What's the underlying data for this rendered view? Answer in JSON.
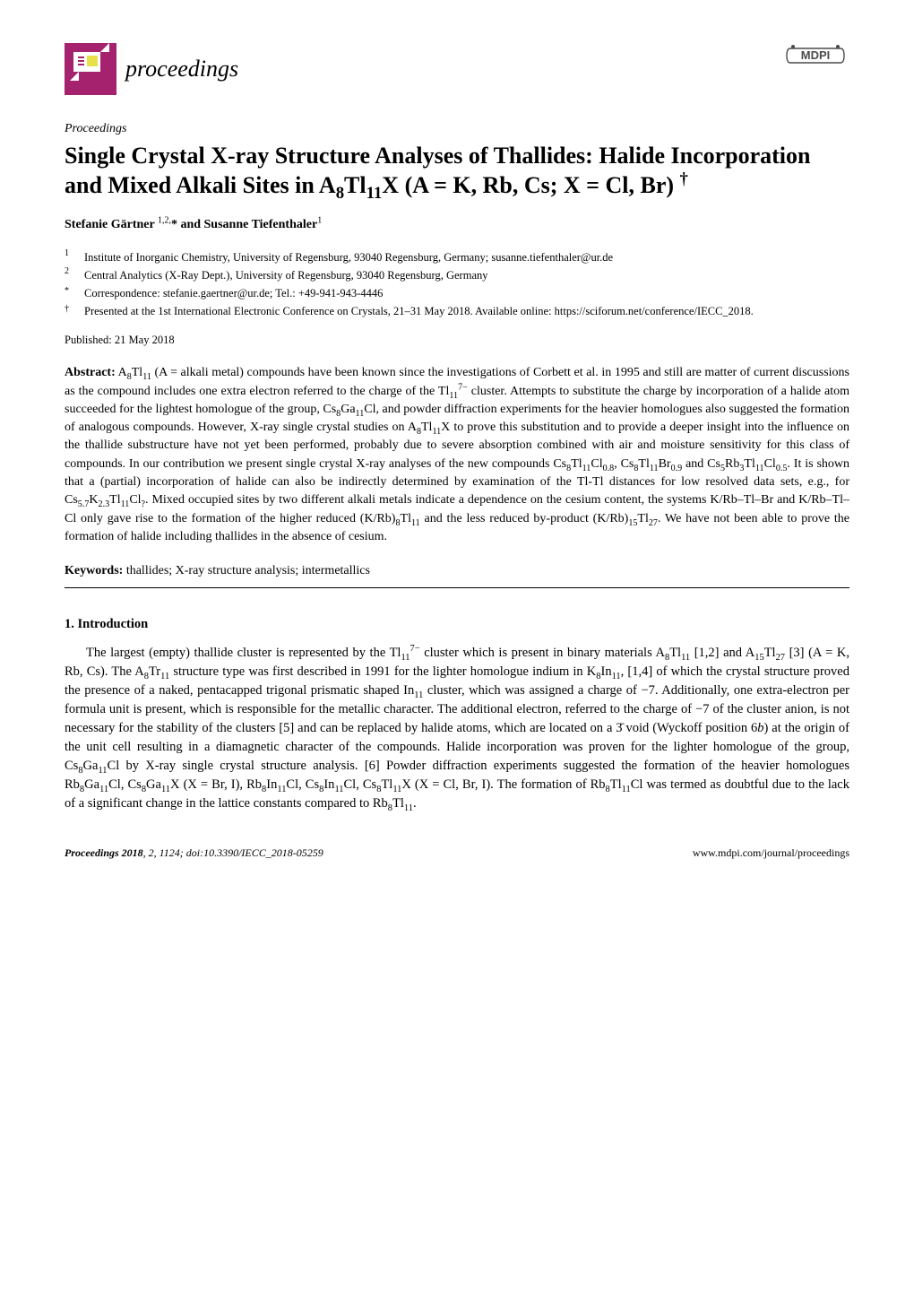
{
  "header": {
    "proceedings_word": "proceedings",
    "logo": {
      "bg_color": "#a5236e",
      "accent_color": "#e8e04a",
      "width": 58,
      "height": 58
    },
    "mdpi": {
      "text": "MDPI",
      "color": "#4b4b4b"
    }
  },
  "article_type": "Proceedings",
  "title_html": "Single Crystal X-ray Structure Analyses of Thallides: Halide Incorporation and Mixed Alkali Sites in A<sub>8</sub>Tl<sub>11</sub>X (A = K, Rb, Cs; X = Cl, Br) <sup>†</sup>",
  "authors_html": "Stefanie Gärtner <sup>1,2,</sup>* and Susanne Tiefenthaler<sup>1</sup>",
  "affiliations": [
    {
      "marker": "1",
      "text": "Institute of Inorganic Chemistry, University of Regensburg, 93040 Regensburg, Germany; susanne.tiefenthaler@ur.de"
    },
    {
      "marker": "2",
      "text": "Central Analytics (X-Ray Dept.), University of Regensburg, 93040 Regensburg, Germany"
    },
    {
      "marker": "*",
      "text": "Correspondence: stefanie.gaertner@ur.de; Tel.: +49-941-943-4446"
    },
    {
      "marker": "†",
      "text": "Presented at the 1st International Electronic Conference on Crystals, 21–31 May 2018. Available online: https://sciforum.net/conference/IECC_2018."
    }
  ],
  "pub_date": "Published: 21 May 2018",
  "abstract": {
    "label": "Abstract:",
    "text_html": "A<sub>8</sub>Tl<sub>11</sub> (A = alkali metal) compounds have been known since the investigations of Corbett et al. in 1995 and still are matter of current discussions as the compound includes one extra electron referred to the charge of the Tl<sub>11</sub><sup>7−</sup> cluster. Attempts to substitute the charge by incorporation of a halide atom succeeded for the lightest homologue of the group, Cs<sub>8</sub>Ga<sub>11</sub>Cl, and powder diffraction experiments for the heavier homologues also suggested the formation of analogous compounds. However, X-ray single crystal studies on A<sub>8</sub>Tl<sub>11</sub>X to prove this substitution and to provide a deeper insight into the influence on the thallide substructure have not yet been performed, probably due to severe absorption combined with air and moisture sensitivity for this class of compounds. In our contribution we present single crystal X-ray analyses of the new compounds Cs<sub>8</sub>Tl<sub>11</sub>Cl<sub>0.8</sub>, Cs<sub>8</sub>Tl<sub>11</sub>Br<sub>0.9</sub> and Cs<sub>5</sub>Rb<sub>3</sub>Tl<sub>11</sub>Cl<sub>0.5</sub>. It is shown that a (partial) incorporation of halide can also be indirectly determined by examination of the Tl-Tl distances for low resolved data sets, e.g., for Cs<sub>5.7</sub>K<sub>2.3</sub>Tl<sub>11</sub>Cl<sub>?</sub>. Mixed occupied sites by two different alkali metals indicate a dependence on the cesium content, the systems K/Rb–Tl–Br and K/Rb–Tl–Cl only gave rise to the formation of the higher reduced (K/Rb)<sub>8</sub>Tl<sub>11</sub> and the less reduced by-product (K/Rb)<sub>15</sub>Tl<sub>27</sub>. We have not been able to prove the formation of halide including thallides in the absence of cesium."
  },
  "keywords": {
    "label": "Keywords:",
    "text": "thallides; X-ray structure analysis; intermetallics"
  },
  "section1": {
    "heading": "1. Introduction",
    "para_html": "The largest (empty) thallide cluster is represented by the Tl<sub>11</sub><sup>7−</sup> cluster which is present in binary materials A<sub>8</sub>Tl<sub>11</sub> [1,2] and A<sub>15</sub>Tl<sub>27</sub> [3] (A = K, Rb, Cs). The A<sub>8</sub>Tr<sub>11</sub> structure type was first described in 1991 for the lighter homologue indium in K<sub>8</sub>In<sub>11</sub>, [1,4] of which the crystal structure proved the presence of a naked, pentacapped trigonal prismatic shaped In<sub>11</sub> cluster, which was assigned a charge of −7. Additionally, one extra-electron per formula unit is present, which is responsible for the metallic character. The additional electron, referred to the charge of −7 of the cluster anion, is not necessary for the stability of the clusters [5] and can be replaced by halide atoms, which are located on a 3̄ void (Wyckoff position 6<i>b</i>) at the origin of the unit cell resulting in a diamagnetic character of the compounds. Halide incorporation was proven for the lighter homologue of the group, Cs<sub>8</sub>Ga<sub>11</sub>Cl by X-ray single crystal structure analysis. [6] Powder diffraction experiments suggested the formation of the heavier homologues Rb<sub>8</sub>Ga<sub>11</sub>Cl, Cs<sub>8</sub>Ga<sub>11</sub>X (X = Br, I), Rb<sub>8</sub>In<sub>11</sub>Cl, Cs<sub>8</sub>In<sub>11</sub>Cl, Cs<sub>8</sub>Tl<sub>11</sub>X (X = Cl, Br, I). The formation of Rb<sub>8</sub>Tl<sub>11</sub>Cl was termed as doubtful due to the lack of a significant change in the lattice constants compared to Rb<sub>8</sub>Tl<sub>11</sub>."
  },
  "footer": {
    "journal": "Proceedings",
    "year": "2018",
    "vol_page": ", 2, 1124; doi:10.3390/IECC_2018-05259",
    "right": "www.mdpi.com/journal/proceedings"
  },
  "colors": {
    "text": "#000000",
    "bg": "#ffffff",
    "rule": "#000000"
  }
}
